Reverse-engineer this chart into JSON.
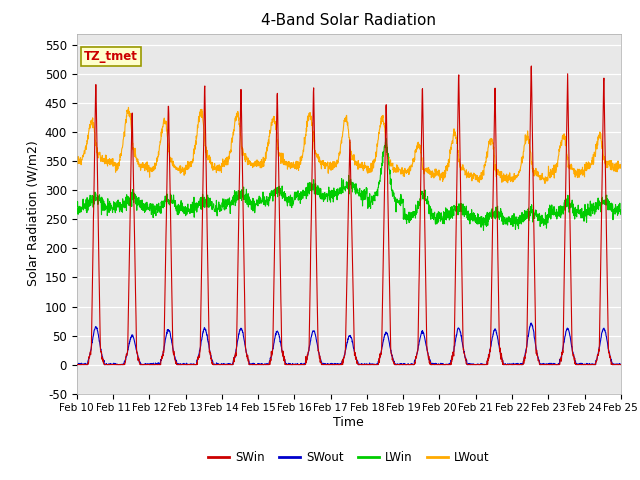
{
  "title": "4-Band Solar Radiation",
  "xlabel": "Time",
  "ylabel": "Solar Radiation (W/m2)",
  "ylim": [
    -50,
    570
  ],
  "yticks": [
    -50,
    0,
    50,
    100,
    150,
    200,
    250,
    300,
    350,
    400,
    450,
    500,
    550
  ],
  "date_labels": [
    "Feb 10",
    "Feb 11",
    "Feb 12",
    "Feb 13",
    "Feb 14",
    "Feb 15",
    "Feb 16",
    "Feb 17",
    "Feb 18",
    "Feb 19",
    "Feb 20",
    "Feb 21",
    "Feb 22",
    "Feb 23",
    "Feb 24",
    "Feb 25"
  ],
  "colors": {
    "SWin": "#cc0000",
    "SWout": "#0000cc",
    "LWin": "#00cc00",
    "LWout": "#ffaa00"
  },
  "annotation_text": "TZ_tmet",
  "annotation_color": "#cc0000",
  "annotation_bg": "#ffffcc",
  "fig_bg": "#ffffff",
  "plot_bg": "#e8e8e8",
  "line_width": 0.8,
  "n_days": 15,
  "pts_per_day": 144,
  "swin_peaks": [
    500,
    445,
    460,
    490,
    488,
    480,
    487,
    395,
    460,
    487,
    511,
    487,
    525,
    510,
    505
  ],
  "swout_peaks": [
    65,
    50,
    60,
    62,
    62,
    57,
    58,
    50,
    55,
    57,
    62,
    60,
    70,
    62,
    62
  ],
  "lwin_base": [
    270,
    272,
    268,
    268,
    278,
    282,
    290,
    295,
    280,
    255,
    255,
    248,
    248,
    260,
    265
  ],
  "lwout_base": [
    350,
    340,
    335,
    340,
    345,
    345,
    342,
    340,
    335,
    330,
    325,
    320,
    320,
    330,
    340
  ],
  "lwout_peak": [
    420,
    440,
    420,
    435,
    432,
    428,
    432,
    425,
    425,
    380,
    400,
    390,
    395,
    395,
    395
  ]
}
